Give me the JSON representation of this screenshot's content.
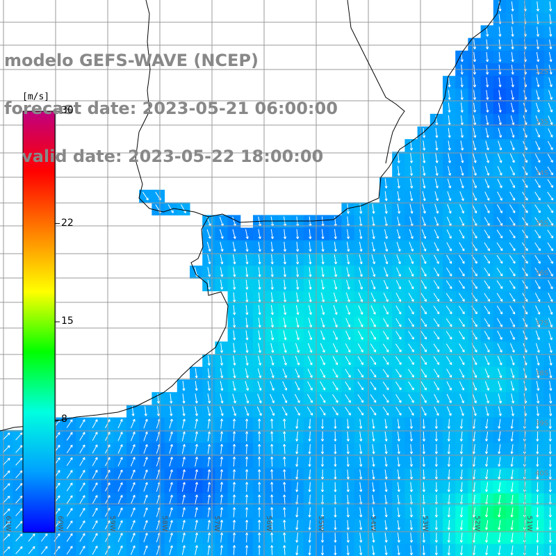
{
  "title": {
    "line1": "modelo GEFS-WAVE (NCEP)",
    "line2": "forecast date: 2023-05-21 06:00:00",
    "line3": "   valid date: 2023-05-22 18:00:00"
  },
  "colorbar": {
    "unit": "[m/s]",
    "min": 0,
    "max": 30,
    "ticks": [
      {
        "value": 30,
        "label": "30"
      },
      {
        "value": 22,
        "label": "22"
      },
      {
        "value": 15,
        "label": "15"
      },
      {
        "value": 8,
        "label": "8"
      }
    ],
    "colors": [
      "#0000ff",
      "#00a0ff",
      "#00ffe0",
      "#00ff00",
      "#ffff00",
      "#ff8000",
      "#ff0000",
      "#c00080"
    ]
  },
  "map": {
    "variable": "wind speed",
    "unit": "m/s",
    "lat_labels": [
      "32S",
      "33S",
      "34S",
      "35S",
      "36S",
      "37S",
      "38S",
      "39S",
      "40S"
    ],
    "lon_labels": [
      "61W",
      "60W",
      "59W",
      "58W",
      "57W",
      "56W",
      "55W",
      "54W",
      "53W",
      "52W",
      "51W"
    ],
    "land_color": "#ffffff",
    "grid_color": "#999999",
    "arrow_color": "#ffffff"
  }
}
